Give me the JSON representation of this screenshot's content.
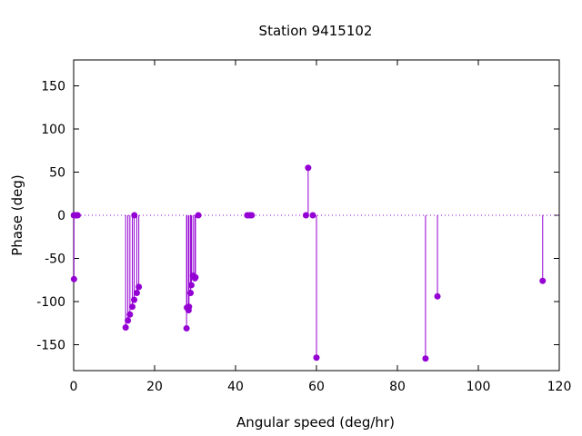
{
  "chart_data": {
    "type": "scatter",
    "title": "Station 9415102",
    "xlabel": "Angular speed (deg/hr)",
    "ylabel": "Phase (deg)",
    "xlim": [
      0,
      120
    ],
    "ylim": [
      -180,
      180
    ],
    "xticks": [
      "0",
      "20",
      "40",
      "60",
      "80",
      "100",
      "120"
    ],
    "yticks": [
      "-150",
      "-100",
      "-50",
      "0",
      "50",
      "100",
      "150"
    ],
    "xtick_values": [
      0,
      20,
      40,
      60,
      80,
      100,
      120
    ],
    "ytick_values": [
      -150,
      -100,
      -50,
      0,
      50,
      100,
      150
    ],
    "zero_line": true,
    "style": "impulses-with-points",
    "series": [
      {
        "color": "#9400d3",
        "points": [
          [
            0.04,
            0
          ],
          [
            0.08,
            -74
          ],
          [
            0.5,
            0
          ],
          [
            0.8,
            0
          ],
          [
            1.0,
            0
          ],
          [
            12.85,
            -130
          ],
          [
            13.4,
            -122
          ],
          [
            13.9,
            -115
          ],
          [
            14.5,
            -106
          ],
          [
            14.95,
            -98
          ],
          [
            15.0,
            0
          ],
          [
            15.6,
            -90
          ],
          [
            16.1,
            -83
          ],
          [
            27.9,
            -131
          ],
          [
            28.0,
            -107
          ],
          [
            28.4,
            -110
          ],
          [
            28.5,
            -106
          ],
          [
            28.9,
            -90
          ],
          [
            29.1,
            -81
          ],
          [
            29.5,
            -70
          ],
          [
            29.95,
            -73
          ],
          [
            30.1,
            -72
          ],
          [
            30.8,
            0
          ],
          [
            42.9,
            0
          ],
          [
            43.5,
            0
          ],
          [
            44.0,
            0
          ],
          [
            57.4,
            0
          ],
          [
            57.95,
            55
          ],
          [
            59.1,
            0
          ],
          [
            60.0,
            -165
          ],
          [
            86.95,
            -166
          ],
          [
            89.9,
            -94
          ],
          [
            115.9,
            -76
          ]
        ]
      }
    ]
  }
}
